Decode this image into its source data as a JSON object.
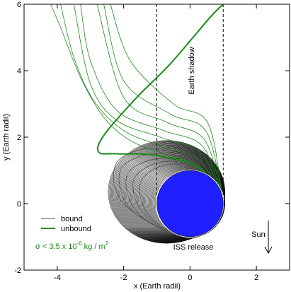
{
  "chart_data": {
    "type": "line",
    "xlabel": "x (Earth radii)",
    "ylabel": "y (Earth radii)",
    "xlim": [
      -5,
      3
    ],
    "ylim": [
      -2,
      6
    ],
    "x_ticks": [
      "-4",
      "-2",
      "0",
      "2"
    ],
    "x_tick_values": [
      -4,
      -2,
      0,
      2
    ],
    "y_ticks": [
      "-2",
      "0",
      "2",
      "4",
      "6"
    ],
    "y_tick_values": [
      -2,
      0,
      2,
      4,
      6
    ],
    "grid": false,
    "earth": {
      "center": [
        0,
        0
      ],
      "radius": 1,
      "color": "#1f1fff"
    },
    "shadow_boundaries_x": [
      -1,
      1
    ],
    "annotations": {
      "shadow": "Earth shadow",
      "release": "ISS release",
      "sun": "Sun"
    },
    "legend": {
      "placement": "bottom-left",
      "items": [
        {
          "label": "bound",
          "color": "#555555"
        },
        {
          "label": "unbound",
          "color": "#1a8a1a"
        }
      ],
      "sigma_label": "σ < 3.5  x 10",
      "sigma_exp": "-6",
      "sigma_unit": " kg / m",
      "sigma_unit_exp": "2"
    },
    "series": [
      {
        "name": "bound",
        "color": "#555555",
        "traces": [
          [
            [
              1.0,
              -0.2
            ],
            [
              0.2,
              1.0
            ],
            [
              -0.8,
              1.15
            ],
            [
              -1.5,
              0.6
            ],
            [
              -1.2,
              -0.4
            ],
            [
              0.0,
              -1.02
            ],
            [
              1.0,
              -0.2
            ]
          ],
          [
            [
              1.0,
              -0.2
            ],
            [
              0.1,
              1.05
            ],
            [
              -0.9,
              1.25
            ],
            [
              -1.7,
              0.7
            ],
            [
              -1.35,
              -0.35
            ],
            [
              0.0,
              -1.02
            ],
            [
              1.0,
              -0.2
            ]
          ],
          [
            [
              1.0,
              -0.2
            ],
            [
              0.0,
              1.1
            ],
            [
              -1.0,
              1.35
            ],
            [
              -1.9,
              0.85
            ],
            [
              -1.55,
              -0.3
            ],
            [
              0.0,
              -1.02
            ],
            [
              1.0,
              -0.2
            ]
          ],
          [
            [
              1.0,
              -0.2
            ],
            [
              -0.1,
              1.2
            ],
            [
              -1.15,
              1.5
            ],
            [
              -2.1,
              1.0
            ],
            [
              -1.75,
              -0.2
            ],
            [
              0.0,
              -1.02
            ],
            [
              1.0,
              -0.2
            ]
          ],
          [
            [
              1.0,
              -0.2
            ],
            [
              -0.2,
              1.3
            ],
            [
              -1.3,
              1.65
            ],
            [
              -2.25,
              1.15
            ],
            [
              -1.95,
              -0.05
            ],
            [
              0.0,
              -1.02
            ],
            [
              1.0,
              -0.2
            ]
          ]
        ]
      },
      {
        "name": "unbound",
        "color": "#1a8a1a",
        "traces": [
          [
            [
              1.0,
              0.0
            ],
            [
              0.3,
              1.1
            ],
            [
              -0.8,
              1.5
            ],
            [
              -1.8,
              1.9
            ],
            [
              -2.6,
              2.6
            ],
            [
              -3.3,
              3.8
            ],
            [
              -3.9,
              5.3
            ],
            [
              -4.2,
              6.0
            ]
          ],
          [
            [
              1.0,
              0.0
            ],
            [
              0.3,
              1.3
            ],
            [
              -0.9,
              1.75
            ],
            [
              -2.0,
              2.2
            ],
            [
              -2.9,
              3.1
            ],
            [
              -3.5,
              4.4
            ],
            [
              -3.9,
              6.0
            ]
          ],
          [
            [
              1.0,
              0.0
            ],
            [
              0.35,
              1.5
            ],
            [
              -0.9,
              2.0
            ],
            [
              -2.2,
              2.5
            ],
            [
              -3.0,
              3.6
            ],
            [
              -3.5,
              6.0
            ]
          ],
          [
            [
              1.0,
              0.0
            ],
            [
              0.4,
              1.7
            ],
            [
              -0.8,
              2.2
            ],
            [
              -2.2,
              2.8
            ],
            [
              -3.0,
              4.3
            ],
            [
              -3.3,
              6.0
            ]
          ],
          [
            [
              1.0,
              0.0
            ],
            [
              0.45,
              1.9
            ],
            [
              -0.7,
              2.45
            ],
            [
              -2.0,
              3.2
            ],
            [
              -2.8,
              6.0
            ]
          ],
          [
            [
              1.0,
              0.0
            ],
            [
              0.5,
              2.15
            ],
            [
              -0.6,
              2.7
            ],
            [
              -2.0,
              3.7
            ],
            [
              -2.6,
              6.0
            ]
          ],
          [
            [
              1.0,
              0.0
            ],
            [
              0.55,
              2.4
            ],
            [
              -0.5,
              3.0
            ],
            [
              -1.8,
              4.3
            ],
            [
              -2.4,
              6.0
            ]
          ],
          [
            [
              1.0,
              0.0
            ],
            [
              0.3,
              1.05
            ],
            [
              -1.0,
              1.45
            ],
            [
              -2.2,
              1.5
            ],
            [
              -2.75,
              1.55
            ],
            [
              -2.6,
              2.05
            ],
            [
              -1.6,
              3.2
            ],
            [
              -0.6,
              4.2
            ],
            [
              0.6,
              5.6
            ],
            [
              1.0,
              6.0
            ]
          ]
        ]
      }
    ]
  }
}
